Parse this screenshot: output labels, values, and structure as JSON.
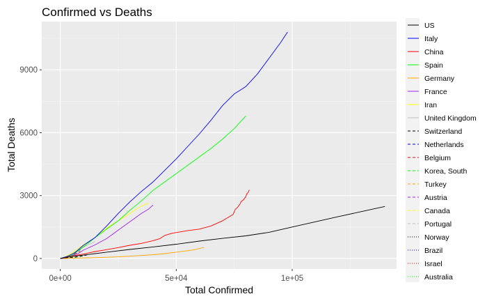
{
  "chart_data": {
    "type": "line",
    "title": "Confirmed vs Deaths",
    "xlabel": "Total Confirmed",
    "ylabel": "Total Deaths",
    "xlim": [
      -8000,
      145000
    ],
    "ylim": [
      -500,
      11300
    ],
    "x_ticks": [
      {
        "value": 0,
        "label": "0e+00"
      },
      {
        "value": 50000,
        "label": "5e+04"
      },
      {
        "value": 100000,
        "label": "1e+05"
      }
    ],
    "y_ticks": [
      {
        "value": 0,
        "label": "0"
      },
      {
        "value": 3000,
        "label": "3000"
      },
      {
        "value": 6000,
        "label": "6000"
      },
      {
        "value": 9000,
        "label": "9000"
      }
    ],
    "grid": true,
    "legend_position": "right",
    "series": [
      {
        "name": "US",
        "color": "#000000",
        "dash": "solid",
        "points": [
          [
            0,
            0
          ],
          [
            3000,
            60
          ],
          [
            6000,
            110
          ],
          [
            10000,
            160
          ],
          [
            15000,
            230
          ],
          [
            20000,
            300
          ],
          [
            30000,
            430
          ],
          [
            40000,
            550
          ],
          [
            50000,
            680
          ],
          [
            60000,
            830
          ],
          [
            70000,
            960
          ],
          [
            80000,
            1080
          ],
          [
            90000,
            1250
          ],
          [
            100000,
            1500
          ],
          [
            110000,
            1750
          ],
          [
            120000,
            2000
          ],
          [
            130000,
            2240
          ],
          [
            140000,
            2480
          ]
        ]
      },
      {
        "name": "Italy",
        "color": "#0000ff",
        "dash": "solid",
        "points": [
          [
            0,
            0
          ],
          [
            3000,
            100
          ],
          [
            6000,
            250
          ],
          [
            10000,
            630
          ],
          [
            15000,
            1000
          ],
          [
            20000,
            1550
          ],
          [
            25000,
            2150
          ],
          [
            30000,
            2700
          ],
          [
            35000,
            3200
          ],
          [
            40000,
            3650
          ],
          [
            45000,
            4200
          ],
          [
            50000,
            4750
          ],
          [
            55000,
            5350
          ],
          [
            60000,
            5950
          ],
          [
            65000,
            6600
          ],
          [
            70000,
            7300
          ],
          [
            75000,
            7850
          ],
          [
            80000,
            8200
          ],
          [
            85000,
            8800
          ],
          [
            90000,
            9550
          ],
          [
            95000,
            10300
          ],
          [
            98000,
            10800
          ]
        ]
      },
      {
        "name": "China",
        "color": "#ff0000",
        "dash": "solid",
        "points": [
          [
            0,
            0
          ],
          [
            5000,
            110
          ],
          [
            10000,
            210
          ],
          [
            15000,
            330
          ],
          [
            20000,
            420
          ],
          [
            25000,
            520
          ],
          [
            30000,
            630
          ],
          [
            35000,
            720
          ],
          [
            40000,
            850
          ],
          [
            43000,
            950
          ],
          [
            45000,
            1100
          ],
          [
            48000,
            1200
          ],
          [
            55000,
            1330
          ],
          [
            60000,
            1400
          ],
          [
            65000,
            1550
          ],
          [
            70000,
            1800
          ],
          [
            73000,
            2000
          ],
          [
            74500,
            2100
          ],
          [
            75500,
            2350
          ],
          [
            76500,
            2450
          ],
          [
            77500,
            2600
          ],
          [
            78000,
            2720
          ],
          [
            79000,
            2800
          ],
          [
            80000,
            2950
          ],
          [
            80500,
            3100
          ],
          [
            81000,
            3150
          ],
          [
            81500,
            3270
          ]
        ]
      },
      {
        "name": "Spain",
        "color": "#00ff00",
        "dash": "solid",
        "points": [
          [
            0,
            0
          ],
          [
            2000,
            50
          ],
          [
            5000,
            150
          ],
          [
            10000,
            550
          ],
          [
            15000,
            1000
          ],
          [
            20000,
            1400
          ],
          [
            25000,
            1800
          ],
          [
            30000,
            2300
          ],
          [
            35000,
            2750
          ],
          [
            40000,
            3250
          ],
          [
            45000,
            3650
          ],
          [
            50000,
            4050
          ],
          [
            55000,
            4450
          ],
          [
            60000,
            4850
          ],
          [
            65000,
            5250
          ],
          [
            70000,
            5700
          ],
          [
            75000,
            6200
          ],
          [
            80000,
            6800
          ]
        ]
      },
      {
        "name": "Germany",
        "color": "#ffa500",
        "dash": "solid",
        "points": [
          [
            0,
            0
          ],
          [
            5000,
            15
          ],
          [
            10000,
            25
          ],
          [
            15000,
            40
          ],
          [
            20000,
            60
          ],
          [
            25000,
            80
          ],
          [
            30000,
            110
          ],
          [
            35000,
            140
          ],
          [
            40000,
            180
          ],
          [
            45000,
            230
          ],
          [
            50000,
            300
          ],
          [
            55000,
            370
          ],
          [
            58000,
            420
          ],
          [
            62000,
            530
          ]
        ]
      },
      {
        "name": "France",
        "color": "#a020f0",
        "dash": "solid",
        "points": [
          [
            0,
            0
          ],
          [
            2000,
            50
          ],
          [
            5000,
            130
          ],
          [
            8000,
            250
          ],
          [
            10000,
            400
          ],
          [
            15000,
            650
          ],
          [
            20000,
            950
          ],
          [
            25000,
            1350
          ],
          [
            30000,
            1750
          ],
          [
            35000,
            2150
          ],
          [
            38000,
            2350
          ],
          [
            40000,
            2550
          ]
        ]
      },
      {
        "name": "Iran",
        "color": "#ffff00",
        "dash": "solid",
        "points": [
          [
            0,
            0
          ],
          [
            2000,
            80
          ],
          [
            5000,
            250
          ],
          [
            10000,
            650
          ],
          [
            15000,
            1000
          ],
          [
            20000,
            1450
          ],
          [
            25000,
            1800
          ],
          [
            30000,
            2150
          ],
          [
            32000,
            2300
          ],
          [
            35000,
            2500
          ],
          [
            38000,
            2640
          ]
        ]
      },
      {
        "name": "United Kingdom",
        "color": "#bebebe",
        "dash": "solid",
        "points": [
          [
            0,
            0
          ],
          [
            3000,
            100
          ],
          [
            6000,
            280
          ],
          [
            9000,
            480
          ],
          [
            12000,
            650
          ],
          [
            15000,
            800
          ]
        ]
      },
      {
        "name": "Switzerland",
        "color": "#000000",
        "dash": "dashed",
        "points": [
          [
            0,
            0
          ],
          [
            5000,
            50
          ],
          [
            10000,
            120
          ],
          [
            12000,
            190
          ]
        ]
      },
      {
        "name": "Netherlands",
        "color": "#0000ff",
        "dash": "dashed",
        "points": [
          [
            0,
            0
          ],
          [
            3000,
            80
          ],
          [
            6000,
            280
          ],
          [
            9000,
            440
          ]
        ]
      },
      {
        "name": "Belgium",
        "color": "#ff0000",
        "dash": "dashed",
        "points": [
          [
            0,
            0
          ],
          [
            3000,
            50
          ],
          [
            6000,
            200
          ],
          [
            8500,
            350
          ]
        ]
      },
      {
        "name": "Korea, South",
        "color": "#00ff00",
        "dash": "dashed",
        "points": [
          [
            0,
            0
          ],
          [
            4000,
            30
          ],
          [
            8000,
            80
          ],
          [
            9500,
            140
          ]
        ]
      },
      {
        "name": "Turkey",
        "color": "#ffa500",
        "dash": "dashed",
        "points": [
          [
            0,
            0
          ],
          [
            3000,
            60
          ],
          [
            6000,
            130
          ],
          [
            7500,
            170
          ]
        ]
      },
      {
        "name": "Austria",
        "color": "#a020f0",
        "dash": "dashed",
        "points": [
          [
            0,
            0
          ],
          [
            3000,
            10
          ],
          [
            6000,
            40
          ],
          [
            7000,
            60
          ]
        ]
      },
      {
        "name": "Canada",
        "color": "#ffff00",
        "dash": "dashed",
        "points": [
          [
            0,
            0
          ],
          [
            2000,
            20
          ],
          [
            4000,
            45
          ],
          [
            5500,
            60
          ]
        ]
      },
      {
        "name": "Portugal",
        "color": "#bebebe",
        "dash": "dashed",
        "points": [
          [
            0,
            0
          ],
          [
            2000,
            30
          ],
          [
            4000,
            90
          ],
          [
            5000,
            120
          ]
        ]
      },
      {
        "name": "Norway",
        "color": "#000000",
        "dash": "dotted",
        "points": [
          [
            0,
            0
          ],
          [
            2000,
            8
          ],
          [
            4000,
            20
          ]
        ]
      },
      {
        "name": "Brazil",
        "color": "#0000ff",
        "dash": "dotted",
        "points": [
          [
            0,
            0
          ],
          [
            2000,
            40
          ],
          [
            3500,
            110
          ]
        ]
      },
      {
        "name": "Israel",
        "color": "#ff0000",
        "dash": "dotted",
        "points": [
          [
            0,
            0
          ],
          [
            2000,
            5
          ],
          [
            3500,
            12
          ]
        ]
      },
      {
        "name": "Australia",
        "color": "#00ff00",
        "dash": "dotted",
        "points": [
          [
            0,
            0
          ],
          [
            2000,
            10
          ],
          [
            3500,
            18
          ]
        ]
      }
    ]
  }
}
